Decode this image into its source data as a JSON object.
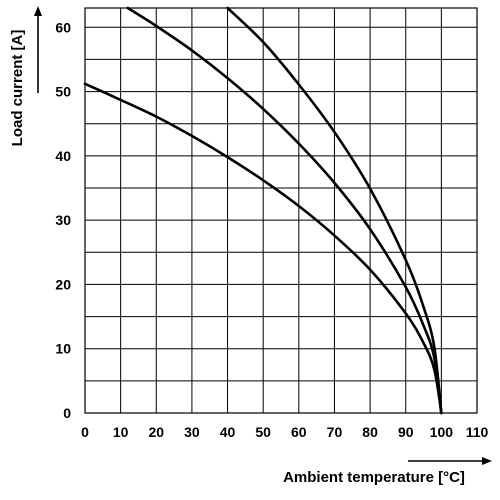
{
  "chart_data": {
    "type": "line",
    "xlabel": "Ambient temperature [°C]",
    "ylabel": "Load current [A]",
    "xlim": [
      0,
      110
    ],
    "ylim": [
      0,
      63
    ],
    "x_ticks": [
      "0",
      "10",
      "20",
      "30",
      "40",
      "50",
      "60",
      "70",
      "80",
      "90",
      "100",
      "110"
    ],
    "y_ticks": [
      "0",
      "10",
      "20",
      "30",
      "40",
      "50",
      "60"
    ],
    "grid": true,
    "series": [
      {
        "x": [
          0,
          10,
          20,
          30,
          40,
          50,
          60,
          70,
          80,
          90,
          95,
          98,
          100
        ],
        "y": [
          51.2,
          48.7,
          46.1,
          43.1,
          39.8,
          36.2,
          32.2,
          27.6,
          22.3,
          15.5,
          10.9,
          6.8,
          0
        ]
      },
      {
        "x": [
          12,
          20,
          30,
          40,
          50,
          60,
          70,
          80,
          90,
          95,
          98,
          100
        ],
        "y": [
          63,
          60.2,
          56.4,
          52.1,
          47.3,
          41.9,
          35.8,
          28.6,
          19.6,
          13.6,
          8.6,
          0
        ]
      },
      {
        "x": [
          40,
          50,
          60,
          70,
          80,
          90,
          95,
          98,
          100
        ],
        "y": [
          63,
          57.7,
          51.1,
          43.7,
          34.9,
          23.8,
          16.5,
          10.3,
          0
        ]
      }
    ]
  }
}
